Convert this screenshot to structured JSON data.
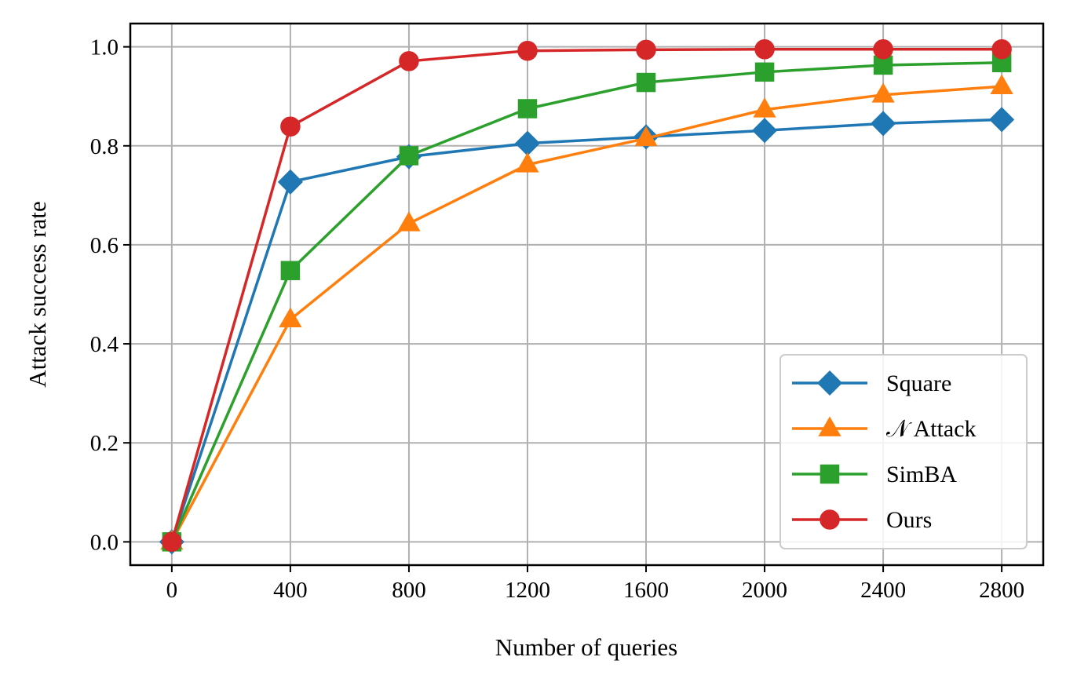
{
  "chart_data": {
    "type": "line",
    "title": "",
    "xlabel": "Number of queries",
    "ylabel": "Attack success rate",
    "x": [
      0,
      400,
      800,
      1200,
      1600,
      2000,
      2400,
      2800
    ],
    "xticks": [
      "0",
      "400",
      "800",
      "1200",
      "1600",
      "2000",
      "2400",
      "2800"
    ],
    "yticks": [
      "0.0",
      "0.2",
      "0.4",
      "0.6",
      "0.8",
      "1.0"
    ],
    "ytick_values": [
      0.0,
      0.2,
      0.4,
      0.6,
      0.8,
      1.0
    ],
    "xlim": [
      -140,
      2940
    ],
    "ylim": [
      -0.047,
      1.047
    ],
    "grid": true,
    "legend_position": "lower-right",
    "series": [
      {
        "name": "Square",
        "color": "#1f77b4",
        "marker": "diamond",
        "values": [
          0.0,
          0.727,
          0.778,
          0.805,
          0.818,
          0.831,
          0.845,
          0.853
        ]
      },
      {
        "name": "𝒩 Attack",
        "color": "#ff7f0e",
        "marker": "triangle",
        "values": [
          0.0,
          0.449,
          0.643,
          0.762,
          0.815,
          0.873,
          0.903,
          0.92
        ]
      },
      {
        "name": "SimBA",
        "color": "#2ca02c",
        "marker": "square",
        "values": [
          0.0,
          0.548,
          0.78,
          0.875,
          0.928,
          0.949,
          0.963,
          0.968
        ]
      },
      {
        "name": "Ours",
        "color": "#d62728",
        "marker": "circle",
        "values": [
          0.0,
          0.839,
          0.971,
          0.992,
          0.994,
          0.995,
          0.995,
          0.995
        ]
      }
    ]
  }
}
